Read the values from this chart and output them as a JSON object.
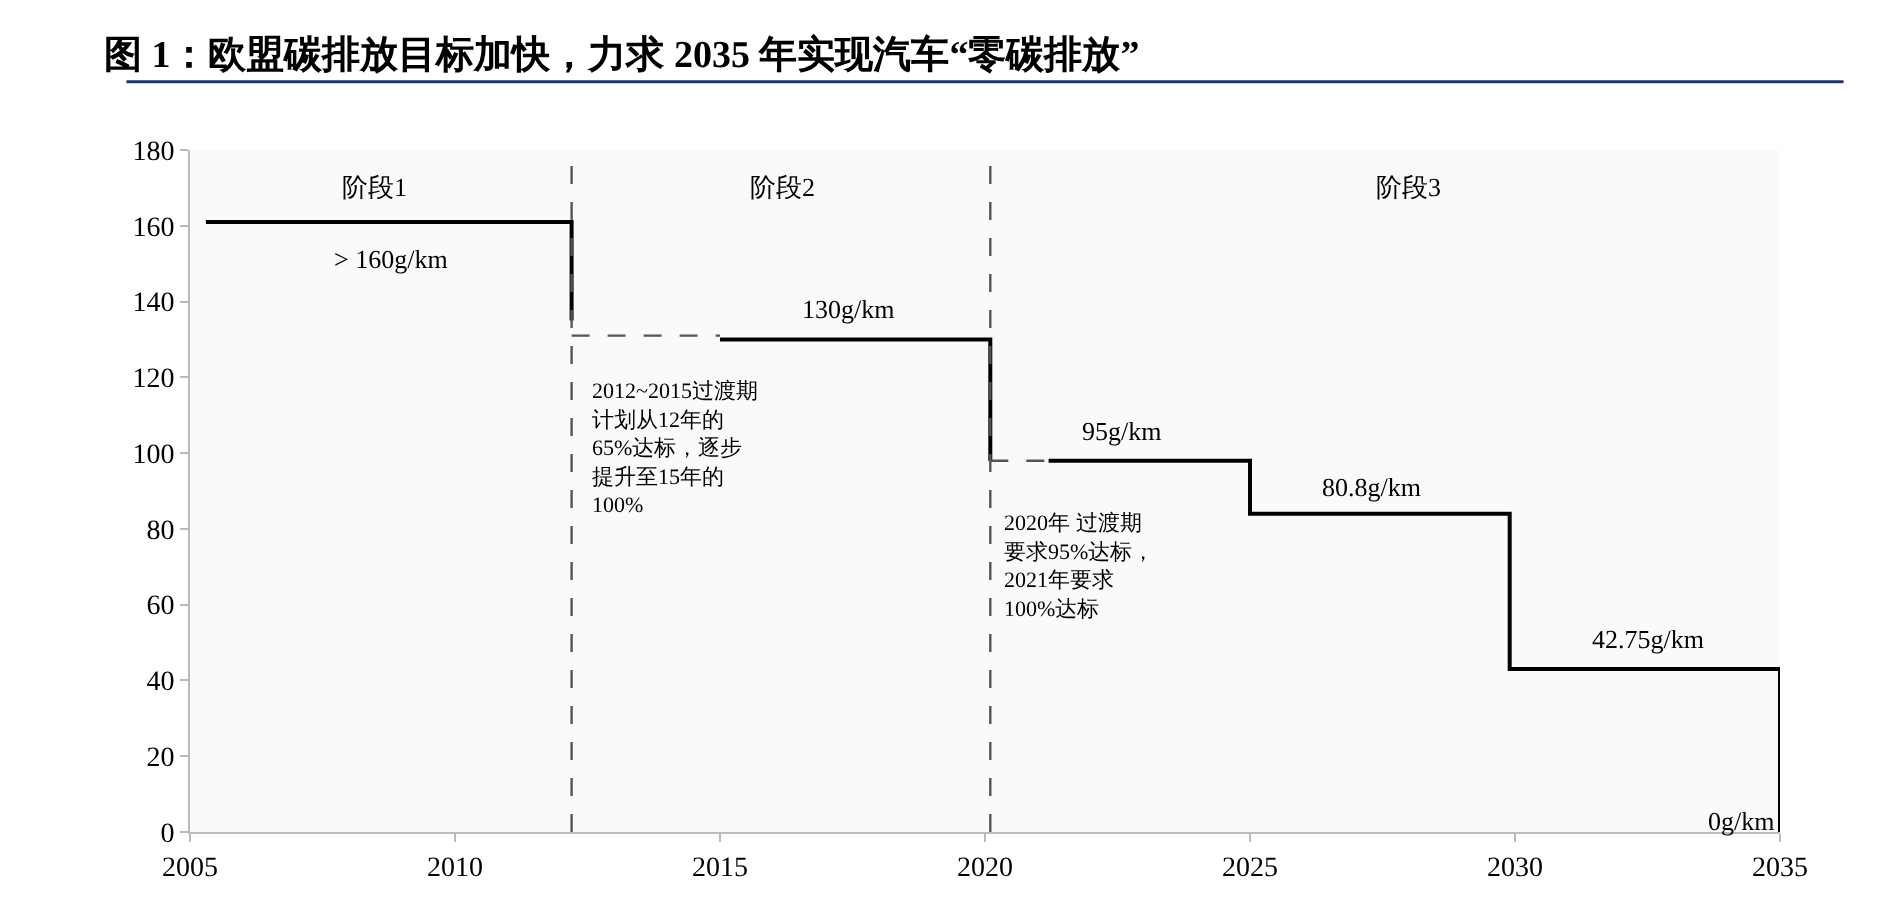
{
  "chart_data": {
    "type": "line",
    "title": "图 1：欧盟碳排放目标加快，力求 2035 年实现汽车“零碳排放”",
    "xlim": [
      2005,
      2035
    ],
    "xticks": [
      2005,
      2010,
      2015,
      2020,
      2025,
      2030,
      2035
    ],
    "ylim": [
      0,
      180
    ],
    "yticks": [
      0,
      20,
      40,
      60,
      80,
      100,
      120,
      140,
      160,
      180
    ],
    "marker": "none",
    "series": [
      {
        "color": "#000000",
        "line_style": "solid",
        "x": [
          2005.3,
          2012.2,
          2012.2
        ],
        "values": [
          161,
          161,
          135
        ]
      },
      {
        "color": "#555555",
        "line_style": "dashed",
        "x": [
          2012.2,
          2015
        ],
        "values": [
          131,
          131
        ]
      },
      {
        "color": "#000000",
        "line_style": "solid",
        "x": [
          2015,
          2020.1,
          2020.1
        ],
        "values": [
          130,
          130,
          98
        ]
      },
      {
        "color": "#555555",
        "line_style": "dashed",
        "x": [
          2020.1,
          2021.2
        ],
        "values": [
          98,
          98
        ]
      },
      {
        "color": "#000000",
        "line_style": "solid",
        "x": [
          2021.2,
          2025,
          2025,
          2029.9,
          2029.9,
          2035,
          2035
        ],
        "values": [
          98,
          98,
          84,
          84,
          43,
          43,
          0
        ]
      }
    ],
    "ref_lines": [
      {
        "axis": "x",
        "value": 2012.2,
        "color": "#555555",
        "line_style": "dashed"
      },
      {
        "axis": "x",
        "value": 2020.1,
        "color": "#555555",
        "line_style": "dashed"
      }
    ],
    "annotations": [
      "阶段1",
      "阶段2",
      "阶段3",
      "> 160g/km",
      "130g/km",
      "2012~2015过渡期计划从12年的65%达标，逐步提升至15年的100%",
      "95g/km",
      "80.8g/km",
      "2020年 过渡期要求95%达标，2021年要求100%达标",
      "42.75g/km",
      "0g/km"
    ]
  }
}
